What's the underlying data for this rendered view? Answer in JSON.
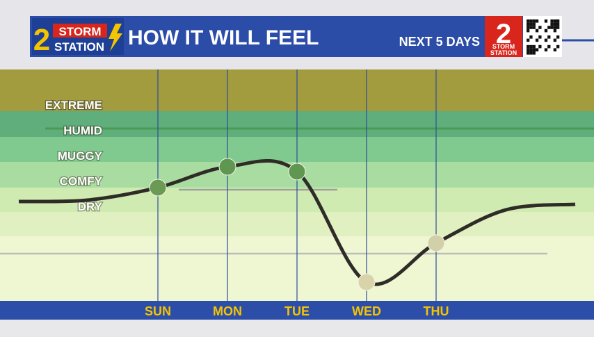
{
  "header": {
    "logo_number": "2",
    "logo_top": "STORM",
    "logo_bottom": "STATION",
    "title": "HOW IT WILL FEEL",
    "subtitle": "NEXT 5 DAYS",
    "badge_number": "2",
    "badge_top": "STORM",
    "badge_bottom": "STATION"
  },
  "chart_data": {
    "type": "line",
    "categories": [
      null,
      null,
      "SUN",
      "MON",
      "TUE",
      "WED",
      "THU",
      null,
      null
    ],
    "series": [
      {
        "color": "#2f2c28",
        "values": [
          1.19,
          1.25,
          1.74,
          2.56,
          2.37,
          -1.99,
          -0.45,
          0.86,
          1.08
        ]
      }
    ],
    "point_colors": [
      null,
      null,
      "#6b9a55",
      "#5f9650",
      "#5f9650",
      "#d8d3a8",
      "#d2d0a8",
      null,
      null
    ],
    "ylim": [
      -2.73,
      6.4
    ],
    "yticks": [
      {
        "value": 1,
        "label": "DRY"
      },
      {
        "value": 2,
        "label": "COMFY"
      },
      {
        "value": 3,
        "label": "MUGGY"
      },
      {
        "value": 4,
        "label": "HUMID"
      },
      {
        "value": 5,
        "label": "EXTREME"
      }
    ]
  }
}
